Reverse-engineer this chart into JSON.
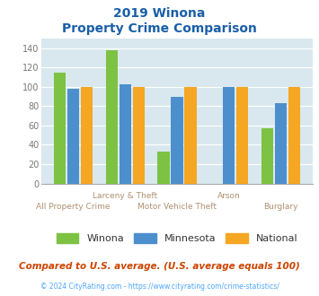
{
  "title_line1": "2019 Winona",
  "title_line2": "Property Crime Comparison",
  "top_labels": [
    "",
    "Larceny & Theft",
    "",
    "Arson",
    ""
  ],
  "bot_labels": [
    "All Property Crime",
    "",
    "Motor Vehicle Theft",
    "",
    "Burglary"
  ],
  "winona": [
    115,
    138,
    33,
    0,
    57
  ],
  "minnesota": [
    98,
    103,
    90,
    100,
    83
  ],
  "national": [
    100,
    100,
    100,
    100,
    100
  ],
  "winona_color": "#7dc243",
  "minnesota_color": "#4d8fcc",
  "national_color": "#f5a623",
  "bg_color": "#d9e8ee",
  "title_color": "#1a5fa8",
  "label_color": "#b09070",
  "subtitle_note": "Compared to U.S. average. (U.S. average equals 100)",
  "footer": "© 2024 CityRating.com - https://www.cityrating.com/crime-statistics/",
  "footer_color": "#4da6ff",
  "ylim": [
    0,
    150
  ],
  "yticks": [
    0,
    20,
    40,
    60,
    80,
    100,
    120,
    140
  ]
}
